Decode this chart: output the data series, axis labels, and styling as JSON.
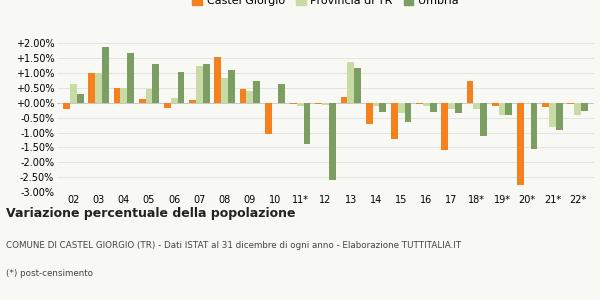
{
  "categories": [
    "02",
    "03",
    "04",
    "05",
    "06",
    "07",
    "08",
    "09",
    "10",
    "11*",
    "12",
    "13",
    "14",
    "15",
    "16",
    "17",
    "18*",
    "19*",
    "20*",
    "21*",
    "22*"
  ],
  "castel_giorgio": [
    -0.002,
    0.0102,
    0.005,
    0.0012,
    -0.0018,
    0.001,
    0.0155,
    0.0047,
    -0.0105,
    -0.0005,
    -0.0005,
    0.002,
    -0.0072,
    -0.0122,
    -0.0005,
    -0.016,
    0.0075,
    -0.001,
    -0.0275,
    -0.0015,
    -0.0005
  ],
  "provincia_tr": [
    0.0065,
    0.01,
    0.005,
    0.0048,
    0.0018,
    0.0125,
    0.0082,
    0.004,
    -0.0005,
    -0.001,
    -0.0008,
    0.0138,
    -0.001,
    -0.0035,
    -0.001,
    -0.0022,
    -0.0022,
    -0.0042,
    -0.0005,
    -0.008,
    -0.0042
  ],
  "umbria": [
    0.003,
    0.0188,
    0.0168,
    0.013,
    0.0105,
    0.013,
    0.011,
    0.0075,
    0.0062,
    -0.014,
    -0.026,
    0.0118,
    -0.003,
    -0.0065,
    -0.003,
    -0.0035,
    -0.011,
    -0.0042,
    -0.0155,
    -0.009,
    -0.0028
  ],
  "castel_color": "#f5811e",
  "provincia_color": "#c8dba4",
  "umbria_color": "#7d9e62",
  "ylim_min": -0.03,
  "ylim_max": 0.0225,
  "yticks": [
    -0.03,
    -0.025,
    -0.02,
    -0.015,
    -0.01,
    -0.005,
    0.0,
    0.005,
    0.01,
    0.015,
    0.02
  ],
  "title": "Variazione percentuale della popolazione",
  "subtitle": "COMUNE DI CASTEL GIORGIO (TR) - Dati ISTAT al 31 dicembre di ogni anno - Elaborazione TUTTITALIA.IT",
  "footnote": "(*) post-censimento",
  "legend_labels": [
    "Castel Giorgio",
    "Provincia di TR",
    "Umbria"
  ],
  "bg_color": "#f8f8f5",
  "grid_color": "#e0e0dc"
}
